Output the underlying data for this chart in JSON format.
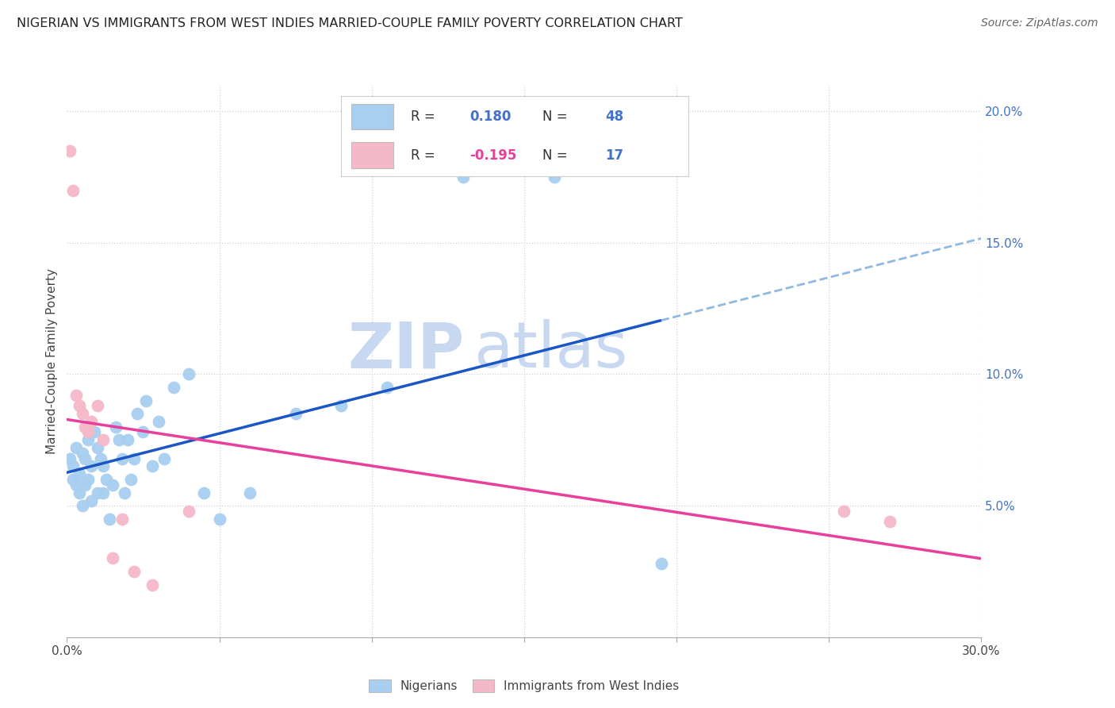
{
  "title": "NIGERIAN VS IMMIGRANTS FROM WEST INDIES MARRIED-COUPLE FAMILY POVERTY CORRELATION CHART",
  "source": "Source: ZipAtlas.com",
  "ylabel": "Married-Couple Family Poverty",
  "x_min": 0.0,
  "x_max": 0.3,
  "y_min": 0.0,
  "y_max": 0.21,
  "blue_color": "#A8CEF0",
  "pink_color": "#F5B8C8",
  "blue_line_color": "#1A56C4",
  "pink_line_color": "#E8409A",
  "dashed_line_color": "#90B8E0",
  "watermark_zip_color": "#C8D8F0",
  "watermark_atlas_color": "#C8D8F0",
  "legend_label1": "Nigerians",
  "legend_label2": "Immigrants from West Indies",
  "r1_text": "R = ",
  "r1_val": " 0.180",
  "n1_text": "  N = ",
  "n1_val": "48",
  "r2_text": "R = ",
  "r2_val": "-0.195",
  "n2_text": "  N = ",
  "n2_val": "17",
  "nigerian_x": [
    0.001,
    0.002,
    0.002,
    0.003,
    0.003,
    0.004,
    0.004,
    0.005,
    0.005,
    0.006,
    0.006,
    0.007,
    0.007,
    0.008,
    0.008,
    0.009,
    0.01,
    0.01,
    0.011,
    0.012,
    0.012,
    0.013,
    0.014,
    0.015,
    0.016,
    0.017,
    0.018,
    0.019,
    0.02,
    0.021,
    0.022,
    0.023,
    0.025,
    0.026,
    0.028,
    0.03,
    0.032,
    0.035,
    0.04,
    0.045,
    0.05,
    0.06,
    0.075,
    0.09,
    0.105,
    0.13,
    0.16,
    0.195
  ],
  "nigerian_y": [
    0.068,
    0.065,
    0.06,
    0.072,
    0.058,
    0.062,
    0.055,
    0.07,
    0.05,
    0.068,
    0.058,
    0.075,
    0.06,
    0.065,
    0.052,
    0.078,
    0.072,
    0.055,
    0.068,
    0.065,
    0.055,
    0.06,
    0.045,
    0.058,
    0.08,
    0.075,
    0.068,
    0.055,
    0.075,
    0.06,
    0.068,
    0.085,
    0.078,
    0.09,
    0.065,
    0.082,
    0.068,
    0.095,
    0.1,
    0.055,
    0.045,
    0.055,
    0.085,
    0.088,
    0.095,
    0.175,
    0.175,
    0.028
  ],
  "westindies_x": [
    0.001,
    0.002,
    0.003,
    0.004,
    0.005,
    0.006,
    0.007,
    0.008,
    0.01,
    0.012,
    0.015,
    0.018,
    0.022,
    0.028,
    0.04,
    0.255,
    0.27
  ],
  "westindies_y": [
    0.185,
    0.17,
    0.092,
    0.088,
    0.085,
    0.08,
    0.078,
    0.082,
    0.088,
    0.075,
    0.03,
    0.045,
    0.025,
    0.02,
    0.048,
    0.048,
    0.044
  ]
}
